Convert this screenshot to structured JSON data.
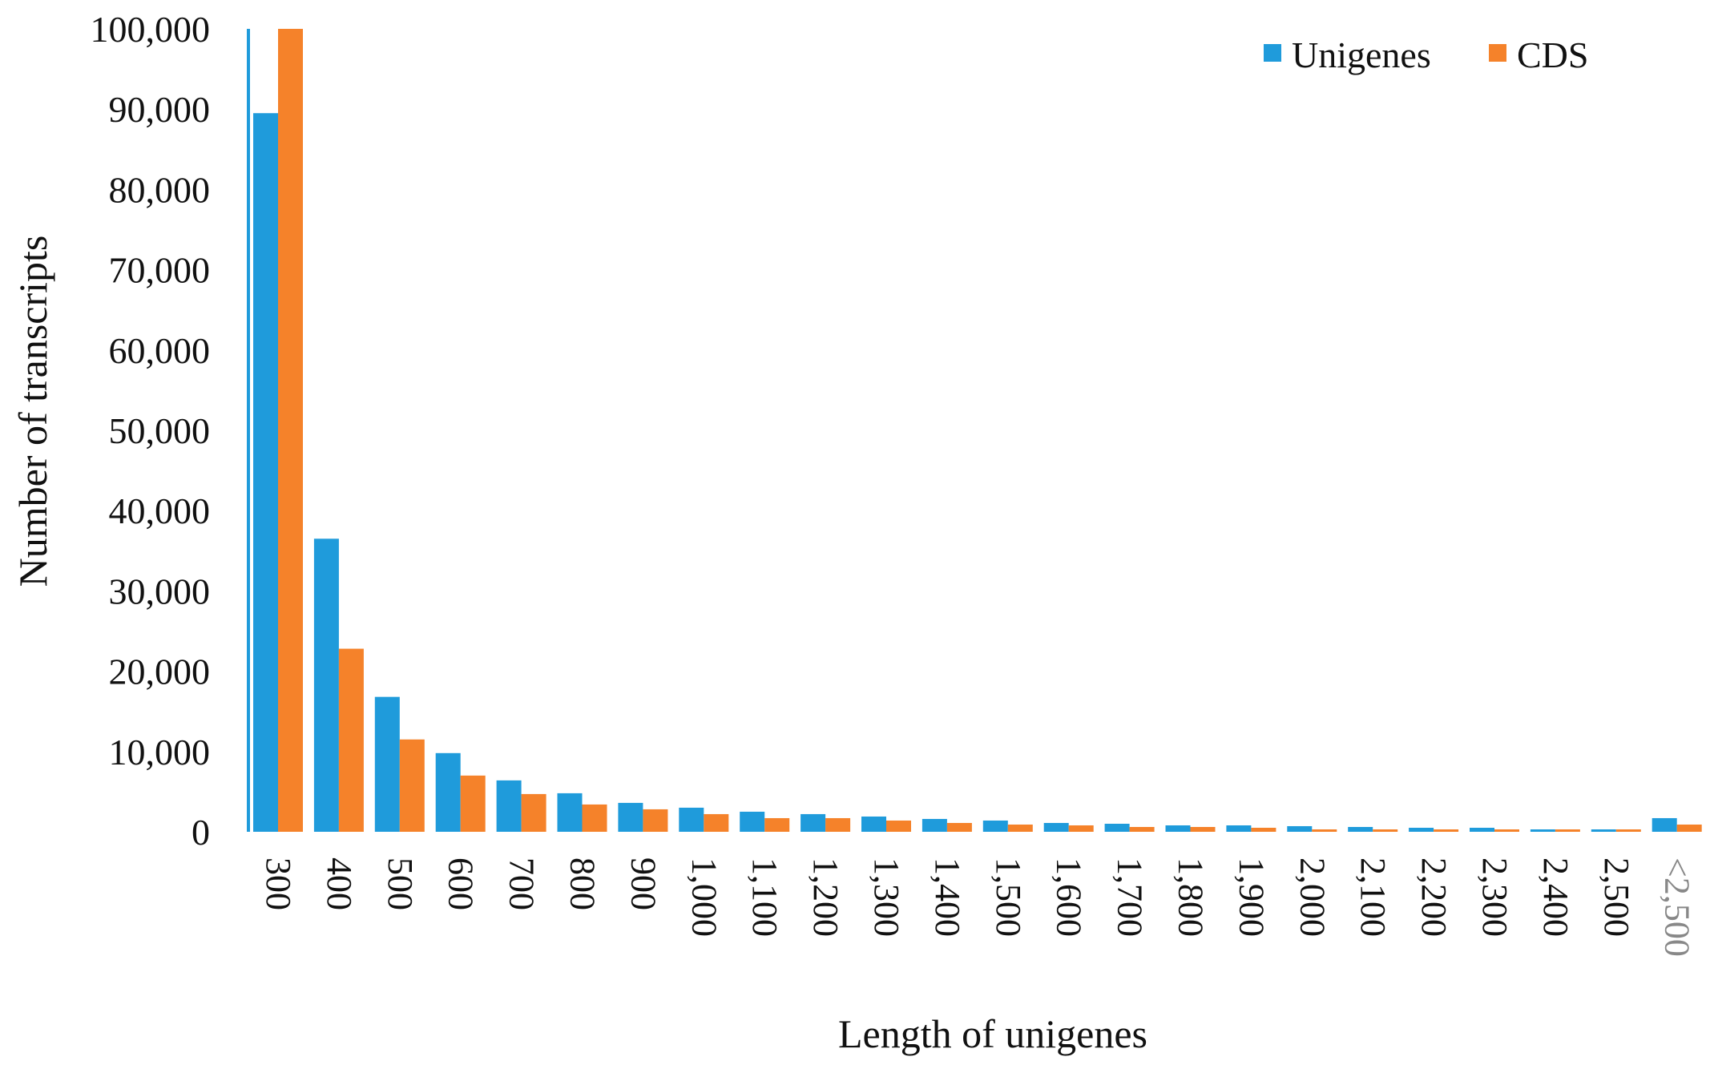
{
  "chart_data": {
    "type": "bar",
    "title": "",
    "xlabel": "Length of unigenes",
    "ylabel": "Number of transcripts",
    "ylim": [
      0,
      100000
    ],
    "yticks": [
      "0",
      "10,000",
      "20,000",
      "30,000",
      "40,000",
      "50,000",
      "60,000",
      "70,000",
      "80,000",
      "90,000",
      "100,000"
    ],
    "ytick_values": [
      0,
      10000,
      20000,
      30000,
      40000,
      50000,
      60000,
      70000,
      80000,
      90000,
      100000
    ],
    "grid": false,
    "legend_position": "top-right",
    "categories": [
      "300",
      "400",
      "500",
      "600",
      "700",
      "800",
      "900",
      "1,000",
      "1,100",
      "1,200",
      "1,300",
      "1,400",
      "1,500",
      "1,600",
      "1,700",
      "1,800",
      "1,900",
      "2,000",
      "2,100",
      "2,200",
      "2,300",
      "2,400",
      "2,500",
      "<2,500"
    ],
    "series": [
      {
        "name": "Unigenes",
        "color": "#1F9BDB",
        "values": [
          89500,
          36500,
          16800,
          9800,
          6400,
          4800,
          3600,
          3000,
          2500,
          2200,
          1900,
          1600,
          1400,
          1100,
          1000,
          800,
          800,
          700,
          600,
          500,
          500,
          300,
          300,
          1700
        ]
      },
      {
        "name": "CDS",
        "color": "#F5822A",
        "values": [
          100000,
          22800,
          11500,
          7000,
          4700,
          3400,
          2800,
          2200,
          1700,
          1700,
          1400,
          1100,
          900,
          800,
          600,
          600,
          500,
          300,
          300,
          300,
          300,
          300,
          300,
          900
        ]
      }
    ]
  }
}
